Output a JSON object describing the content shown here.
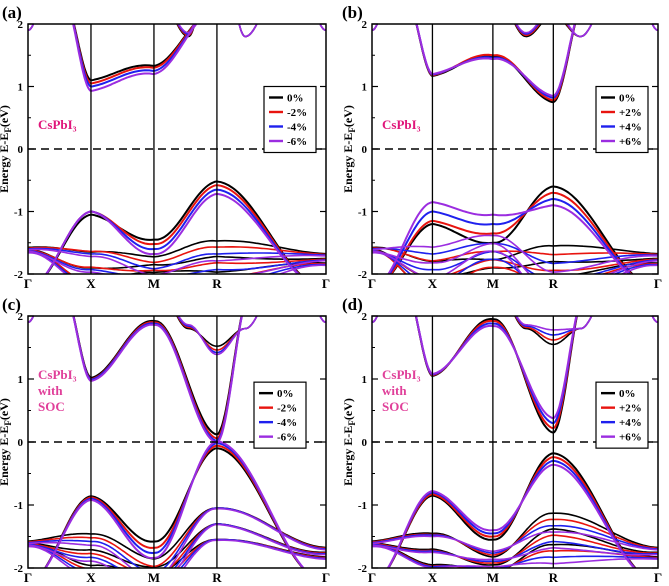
{
  "figure": {
    "colors": {
      "0%": "#000000",
      "-2%": "#e8140f",
      "-4%": "#1f20ee",
      "-6%": "#9b2de0",
      "+2%": "#e8140f",
      "+4%": "#1f20ee",
      "+6%": "#9b2de0",
      "material_text": "#e0157a",
      "material_text_soc": "#e0409a"
    }
  },
  "chart_data": [
    {
      "type": "line",
      "panel_label": "(a)",
      "material_label": [
        "CsPbI₃"
      ],
      "ylabel": "Energy E-Eₓ(eV)",
      "ylabel_main": "Energy E-E",
      "ylabel_sub": "F",
      "ylabel_tail": "(eV)",
      "ylim": [
        -2,
        2
      ],
      "yticks": [
        "-2",
        "-1",
        "0",
        "1",
        "2"
      ],
      "xticks": [
        "Γ",
        "X",
        "M",
        "R",
        "Γ"
      ],
      "k_positions": [
        0,
        1,
        2,
        3,
        4.732
      ],
      "legend": [
        "0%",
        "-2%",
        "-4%",
        "-6%"
      ],
      "series": [
        {
          "name": "0%",
          "cb": [
            [
              3,
              2.2
            ],
            [
              1,
              1.1
            ],
            [
              2,
              1.33
            ],
            [
              3,
              0.62
            ],
            [
              4.732,
              2.2
            ]
          ],
          "vb": [
            [
              0.9,
              -1.55
            ],
            [
              1,
              -1.05
            ],
            [
              2,
              -1.45
            ],
            [
              3,
              -0.52
            ],
            [
              4.732,
              -1.6
            ]
          ]
        },
        {
          "name": "-2%",
          "cb": [
            [
              3,
              2.2
            ],
            [
              1,
              1.05
            ],
            [
              2,
              1.3
            ],
            [
              3,
              0.55
            ],
            [
              4.732,
              2.2
            ]
          ],
          "vb": [
            [
              0.9,
              -1.6
            ],
            [
              1,
              -1.0
            ],
            [
              2,
              -1.52
            ],
            [
              3,
              -0.58
            ],
            [
              4.732,
              -1.65
            ]
          ]
        },
        {
          "name": "-4%",
          "cb": [
            [
              3,
              2.2
            ],
            [
              1,
              1.0
            ],
            [
              2,
              1.25
            ],
            [
              3,
              0.46
            ],
            [
              4.732,
              2.2
            ]
          ],
          "vb": [
            [
              0.9,
              -1.65
            ],
            [
              1,
              -1.0
            ],
            [
              2,
              -1.6
            ],
            [
              3,
              -0.65
            ],
            [
              4.732,
              -1.7
            ]
          ]
        },
        {
          "name": "-6%",
          "cb": [
            [
              3,
              2.2
            ],
            [
              1,
              0.93
            ],
            [
              2,
              1.2
            ],
            [
              3,
              0.38
            ],
            [
              4.732,
              2.2
            ]
          ],
          "vb": [
            [
              0.9,
              -1.7
            ],
            [
              1,
              -1.0
            ],
            [
              2,
              -1.68
            ],
            [
              3,
              -0.72
            ],
            [
              4.732,
              -1.75
            ]
          ]
        }
      ]
    },
    {
      "type": "line",
      "panel_label": "(b)",
      "material_label": [
        "CsPbI₃"
      ],
      "ylabel": "Energy E-Eₓ(eV)",
      "ylabel_main": "Energy E-E",
      "ylabel_sub": "F",
      "ylabel_tail": "(eV)",
      "ylim": [
        -2,
        2
      ],
      "yticks": [
        "-2",
        "-1",
        "0",
        "1",
        "2"
      ],
      "xticks": [
        "Γ",
        "X",
        "M",
        "R",
        "Γ"
      ],
      "k_positions": [
        0,
        1,
        2,
        3,
        4.732
      ],
      "legend": [
        "0%",
        "+2%",
        "+4%",
        "+6%"
      ],
      "series": [
        {
          "name": "0%",
          "cb": [
            [
              1,
              1.17
            ],
            [
              2,
              1.48
            ],
            [
              3,
              0.75
            ]
          ],
          "vb": [
            [
              1,
              -1.2
            ],
            [
              2,
              -1.5
            ],
            [
              3,
              -0.6
            ]
          ]
        },
        {
          "name": "+2%",
          "cb": [
            [
              1,
              1.18
            ],
            [
              2,
              1.5
            ],
            [
              3,
              0.78
            ]
          ],
          "vb": [
            [
              1,
              -1.15
            ],
            [
              2,
              -1.35
            ],
            [
              3,
              -0.7
            ]
          ]
        },
        {
          "name": "+4%",
          "cb": [
            [
              1,
              1.19
            ],
            [
              2,
              1.46
            ],
            [
              3,
              0.82
            ]
          ],
          "vb": [
            [
              1,
              -1.0
            ],
            [
              2,
              -1.2
            ],
            [
              3,
              -0.8
            ]
          ]
        },
        {
          "name": "+6%",
          "cb": [
            [
              1,
              1.2
            ],
            [
              2,
              1.44
            ],
            [
              3,
              0.85
            ]
          ],
          "vb": [
            [
              1,
              -0.85
            ],
            [
              2,
              -1.05
            ],
            [
              3,
              -0.9
            ]
          ]
        }
      ]
    },
    {
      "type": "line",
      "panel_label": "(c)",
      "material_label": [
        "CsPbI₃",
        "with",
        "SOC"
      ],
      "ylabel": "Energy E-Eₓ(eV)",
      "ylabel_main": "Energy E-E",
      "ylabel_sub": "F",
      "ylabel_tail": "(eV)",
      "ylim": [
        -2,
        2
      ],
      "yticks": [
        "-2",
        "-1",
        "0",
        "1",
        "2"
      ],
      "xticks": [
        "Γ",
        "X",
        "M",
        "R",
        "Γ"
      ],
      "k_positions": [
        0,
        1,
        2,
        3,
        4.732
      ],
      "legend": [
        "0%",
        "-2%",
        "-4%",
        "-6%"
      ],
      "series": [
        {
          "name": "0%",
          "cb": [
            [
              1,
              1.02
            ],
            [
              2,
              1.92
            ],
            [
              3,
              0.12
            ]
          ],
          "vb": [
            [
              1,
              -0.86
            ],
            [
              2,
              -1.58
            ],
            [
              3,
              -0.1
            ]
          ]
        },
        {
          "name": "-2%",
          "cb": [
            [
              1,
              1.0
            ],
            [
              2,
              1.9
            ],
            [
              3,
              0.06
            ]
          ],
          "vb": [
            [
              1,
              -0.88
            ],
            [
              2,
              -1.68
            ],
            [
              3,
              -0.06
            ]
          ]
        },
        {
          "name": "-4%",
          "cb": [
            [
              1,
              0.99
            ],
            [
              2,
              1.88
            ],
            [
              3,
              0.02
            ]
          ],
          "vb": [
            [
              1,
              -0.9
            ],
            [
              2,
              -1.76
            ],
            [
              3,
              -0.02
            ]
          ]
        },
        {
          "name": "-6%",
          "cb": [
            [
              1,
              0.97
            ],
            [
              2,
              1.86
            ],
            [
              3,
              -0.01
            ]
          ],
          "vb": [
            [
              1,
              -0.92
            ],
            [
              2,
              -1.84
            ],
            [
              3,
              0.01
            ]
          ]
        }
      ]
    },
    {
      "type": "line",
      "panel_label": "(d)",
      "material_label": [
        "CsPbI₃",
        "with",
        "SOC"
      ],
      "ylabel": "Energy E-Eₓ(eV)",
      "ylabel_main": "Energy E-E",
      "ylabel_sub": "F",
      "ylabel_tail": "(eV)",
      "ylim": [
        -2,
        2
      ],
      "yticks": [
        "-2",
        "-1",
        "0",
        "1",
        "2"
      ],
      "xticks": [
        "Γ",
        "X",
        "M",
        "R",
        "Γ"
      ],
      "k_positions": [
        0,
        1,
        2,
        3,
        4.732
      ],
      "legend": [
        "0%",
        "+2%",
        "+4%",
        "+6%"
      ],
      "series": [
        {
          "name": "0%",
          "cb": [
            [
              1,
              1.05
            ],
            [
              2,
              1.95
            ],
            [
              3,
              0.15
            ]
          ],
          "vb": [
            [
              1,
              -0.85
            ],
            [
              2,
              -1.55
            ],
            [
              3,
              -0.18
            ]
          ]
        },
        {
          "name": "+2%",
          "cb": [
            [
              1,
              1.06
            ],
            [
              2,
              1.92
            ],
            [
              3,
              0.22
            ]
          ],
          "vb": [
            [
              1,
              -0.83
            ],
            [
              2,
              -1.5
            ],
            [
              3,
              -0.24
            ]
          ]
        },
        {
          "name": "+4%",
          "cb": [
            [
              1,
              1.07
            ],
            [
              2,
              1.88
            ],
            [
              3,
              0.3
            ]
          ],
          "vb": [
            [
              1,
              -0.8
            ],
            [
              2,
              -1.45
            ],
            [
              3,
              -0.3
            ]
          ]
        },
        {
          "name": "+6%",
          "cb": [
            [
              1,
              1.08
            ],
            [
              2,
              1.84
            ],
            [
              3,
              0.38
            ]
          ],
          "vb": [
            [
              1,
              -0.78
            ],
            [
              2,
              -1.4
            ],
            [
              3,
              -0.36
            ]
          ]
        }
      ]
    }
  ]
}
